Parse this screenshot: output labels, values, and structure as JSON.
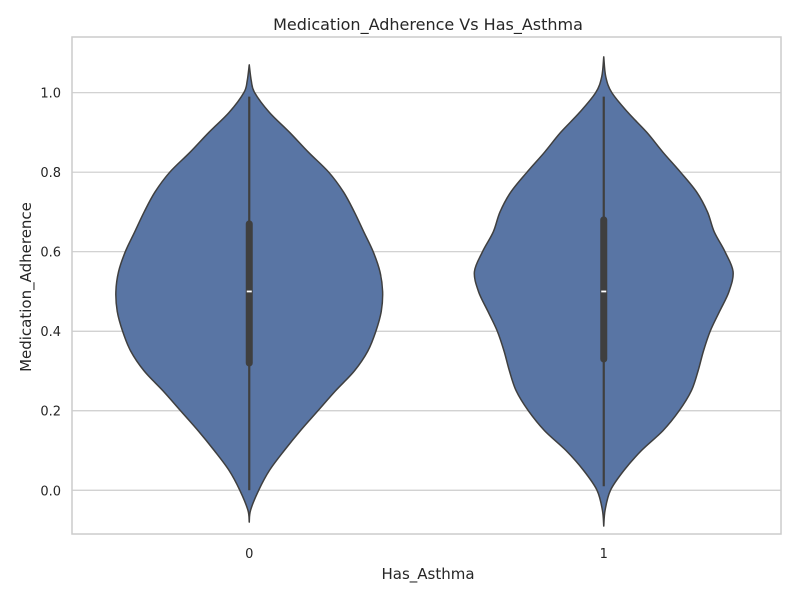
{
  "chart_data": {
    "type": "violin",
    "title": "Medication_Adherence Vs Has_Asthma",
    "xlabel": "Has_Asthma",
    "ylabel": "Medication_Adherence",
    "categories": [
      "0",
      "1"
    ],
    "ylim": [
      -0.11,
      1.14
    ],
    "yticks": [
      0.0,
      0.2,
      0.4,
      0.6,
      0.8,
      1.0
    ],
    "ytick_labels": [
      "0.0",
      "0.2",
      "0.4",
      "0.6",
      "0.8",
      "1.0"
    ],
    "grid": true,
    "violins": [
      {
        "category": "0",
        "min": 0.0,
        "q1": 0.32,
        "median": 0.5,
        "q3": 0.67,
        "max": 0.99,
        "density_extent": [
          -0.08,
          1.07
        ],
        "density": [
          [
            -0.08,
            0.0
          ],
          [
            -0.05,
            0.01
          ],
          [
            0.0,
            0.07
          ],
          [
            0.05,
            0.15
          ],
          [
            0.1,
            0.26
          ],
          [
            0.15,
            0.38
          ],
          [
            0.2,
            0.51
          ],
          [
            0.25,
            0.64
          ],
          [
            0.3,
            0.78
          ],
          [
            0.35,
            0.88
          ],
          [
            0.4,
            0.94
          ],
          [
            0.45,
            0.98
          ],
          [
            0.5,
            0.99
          ],
          [
            0.55,
            0.97
          ],
          [
            0.6,
            0.92
          ],
          [
            0.65,
            0.85
          ],
          [
            0.7,
            0.78
          ],
          [
            0.75,
            0.7
          ],
          [
            0.8,
            0.59
          ],
          [
            0.85,
            0.44
          ],
          [
            0.9,
            0.3
          ],
          [
            0.95,
            0.15
          ],
          [
            1.0,
            0.04
          ],
          [
            1.03,
            0.015
          ],
          [
            1.07,
            0.0
          ]
        ]
      },
      {
        "category": "1",
        "min": 0.01,
        "q1": 0.33,
        "median": 0.5,
        "q3": 0.68,
        "max": 0.99,
        "density_extent": [
          -0.09,
          1.09
        ],
        "density": [
          [
            -0.09,
            0.0
          ],
          [
            -0.05,
            0.01
          ],
          [
            0.0,
            0.05
          ],
          [
            0.05,
            0.15
          ],
          [
            0.1,
            0.28
          ],
          [
            0.15,
            0.44
          ],
          [
            0.2,
            0.56
          ],
          [
            0.25,
            0.65
          ],
          [
            0.3,
            0.7
          ],
          [
            0.35,
            0.74
          ],
          [
            0.4,
            0.79
          ],
          [
            0.45,
            0.86
          ],
          [
            0.5,
            0.93
          ],
          [
            0.55,
            0.96
          ],
          [
            0.6,
            0.9
          ],
          [
            0.65,
            0.82
          ],
          [
            0.7,
            0.77
          ],
          [
            0.75,
            0.69
          ],
          [
            0.8,
            0.57
          ],
          [
            0.85,
            0.44
          ],
          [
            0.9,
            0.32
          ],
          [
            0.95,
            0.18
          ],
          [
            1.0,
            0.06
          ],
          [
            1.04,
            0.015
          ],
          [
            1.09,
            0.0
          ]
        ]
      }
    ],
    "colors": {
      "violin_fill": "#5975a4",
      "violin_edge": "#3f3f3f",
      "box": "#3f3f3f",
      "median": "#ffffff"
    }
  }
}
